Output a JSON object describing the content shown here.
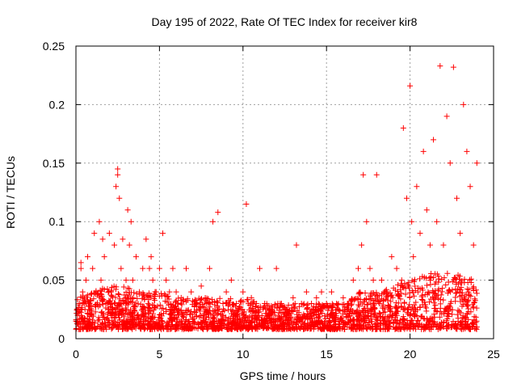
{
  "chart_data": {
    "type": "scatter",
    "title": "Day 195 of 2022, Rate Of TEC Index for receiver kir8",
    "xlabel": "GPS time / hours",
    "ylabel": "ROTI / TECUs",
    "xlim": [
      0,
      25
    ],
    "ylim": [
      0,
      0.25
    ],
    "xticks": [
      0,
      5,
      10,
      15,
      20,
      25
    ],
    "yticks": [
      0,
      0.05,
      0.1,
      0.15,
      0.2,
      0.25
    ],
    "xtick_labels": [
      "0",
      "5",
      "10",
      "15",
      "20",
      "25"
    ],
    "ytick_labels": [
      "0",
      "0.05",
      "0.1",
      "0.15",
      "0.2",
      "0.25"
    ],
    "grid": true,
    "legend": "none",
    "marker": "+",
    "color": "#ff0000",
    "series": [
      {
        "x": [
          0.1,
          0.2,
          0.3,
          0.3,
          0.4,
          0.5,
          0.6,
          0.7,
          0.8,
          1.0,
          1.1,
          1.2,
          1.4,
          1.5,
          1.6,
          1.7,
          1.8,
          2.0,
          2.1,
          2.3,
          2.4,
          2.5,
          2.5,
          2.6,
          2.7,
          2.8,
          3.0,
          3.1,
          3.2,
          3.3,
          3.4,
          3.6,
          3.8,
          4.0,
          4.2,
          4.4,
          4.5,
          4.6,
          4.8,
          5.0,
          5.2,
          5.4,
          5.6,
          5.8,
          6.0,
          6.3,
          6.6,
          6.9,
          7.2,
          7.5,
          7.8,
          8.0,
          8.2,
          8.5,
          8.8,
          9.0,
          9.3,
          9.6,
          10.0,
          10.2,
          10.5,
          10.8,
          11.0,
          11.3,
          11.6,
          12.0,
          12.3,
          12.6,
          13.0,
          13.2,
          13.5,
          13.8,
          14.1,
          14.4,
          14.7,
          15.0,
          15.3,
          15.6,
          16.0,
          16.3,
          16.6,
          16.9,
          17.1,
          17.2,
          17.4,
          17.6,
          17.8,
          18.0,
          18.3,
          18.6,
          18.9,
          19.2,
          19.5,
          19.6,
          19.8,
          20.0,
          20.1,
          20.2,
          20.4,
          20.6,
          20.8,
          21.0,
          21.2,
          21.4,
          21.6,
          21.8,
          22.0,
          22.2,
          22.4,
          22.6,
          22.8,
          23.0,
          23.2,
          23.4,
          23.6,
          23.8,
          24.0
        ],
        "y": [
          0.02,
          0.03,
          0.06,
          0.065,
          0.04,
          0.03,
          0.05,
          0.07,
          0.03,
          0.06,
          0.09,
          0.04,
          0.1,
          0.05,
          0.085,
          0.07,
          0.03,
          0.09,
          0.04,
          0.08,
          0.13,
          0.145,
          0.14,
          0.12,
          0.06,
          0.085,
          0.05,
          0.11,
          0.08,
          0.1,
          0.05,
          0.07,
          0.04,
          0.06,
          0.085,
          0.06,
          0.07,
          0.05,
          0.04,
          0.06,
          0.09,
          0.05,
          0.04,
          0.06,
          0.04,
          0.035,
          0.06,
          0.04,
          0.03,
          0.045,
          0.03,
          0.06,
          0.1,
          0.108,
          0.03,
          0.04,
          0.05,
          0.03,
          0.04,
          0.115,
          0.035,
          0.03,
          0.06,
          0.03,
          0.02,
          0.06,
          0.03,
          0.02,
          0.035,
          0.08,
          0.03,
          0.04,
          0.03,
          0.035,
          0.04,
          0.03,
          0.04,
          0.03,
          0.035,
          0.03,
          0.05,
          0.06,
          0.08,
          0.14,
          0.1,
          0.06,
          0.05,
          0.14,
          0.05,
          0.04,
          0.07,
          0.06,
          0.05,
          0.18,
          0.12,
          0.216,
          0.1,
          0.07,
          0.13,
          0.09,
          0.16,
          0.11,
          0.08,
          0.17,
          0.1,
          0.233,
          0.08,
          0.19,
          0.15,
          0.232,
          0.12,
          0.09,
          0.2,
          0.16,
          0.13,
          0.08,
          0.15
        ]
      },
      {
        "x": [
          0.0,
          0.5,
          1.0,
          1.5,
          2.0,
          2.5,
          3.0,
          3.5,
          4.0,
          4.5,
          5.0,
          5.5,
          6.0,
          6.5,
          7.0,
          7.5,
          8.0,
          8.5,
          9.0,
          9.5,
          10.0,
          10.5,
          11.0,
          11.5,
          12.0,
          12.5,
          13.0,
          13.5,
          14.0,
          14.5,
          15.0,
          15.5,
          16.0,
          16.5,
          17.0,
          17.5,
          18.0,
          18.5,
          19.0,
          19.5,
          20.0,
          20.5,
          21.0,
          21.5,
          22.0,
          22.5,
          23.0,
          23.5,
          24.0
        ],
        "y": [
          0.015,
          0.01,
          0.01,
          0.012,
          0.01,
          0.01,
          0.012,
          0.01,
          0.01,
          0.01,
          0.012,
          0.01,
          0.01,
          0.012,
          0.01,
          0.01,
          0.012,
          0.01,
          0.01,
          0.012,
          0.01,
          0.01,
          0.012,
          0.01,
          0.01,
          0.012,
          0.01,
          0.01,
          0.012,
          0.01,
          0.01,
          0.012,
          0.01,
          0.01,
          0.012,
          0.01,
          0.01,
          0.012,
          0.01,
          0.01,
          0.012,
          0.01,
          0.01,
          0.012,
          0.01,
          0.01,
          0.012,
          0.01,
          0.01
        ]
      }
    ],
    "density_band": {
      "x": [
        0,
        1,
        2,
        3,
        4,
        5,
        6,
        7,
        8,
        9,
        10,
        11,
        12,
        13,
        14,
        15,
        16,
        17,
        18,
        19,
        20,
        21,
        22,
        23,
        24
      ],
      "y_low": [
        0.008,
        0.008,
        0.008,
        0.008,
        0.008,
        0.008,
        0.008,
        0.008,
        0.008,
        0.008,
        0.008,
        0.008,
        0.008,
        0.008,
        0.008,
        0.008,
        0.008,
        0.008,
        0.008,
        0.008,
        0.008,
        0.008,
        0.008,
        0.008,
        0.008
      ],
      "y_high": [
        0.035,
        0.04,
        0.045,
        0.045,
        0.04,
        0.04,
        0.035,
        0.035,
        0.035,
        0.035,
        0.035,
        0.03,
        0.03,
        0.03,
        0.03,
        0.03,
        0.03,
        0.04,
        0.04,
        0.045,
        0.05,
        0.055,
        0.06,
        0.055,
        0.05
      ]
    }
  }
}
